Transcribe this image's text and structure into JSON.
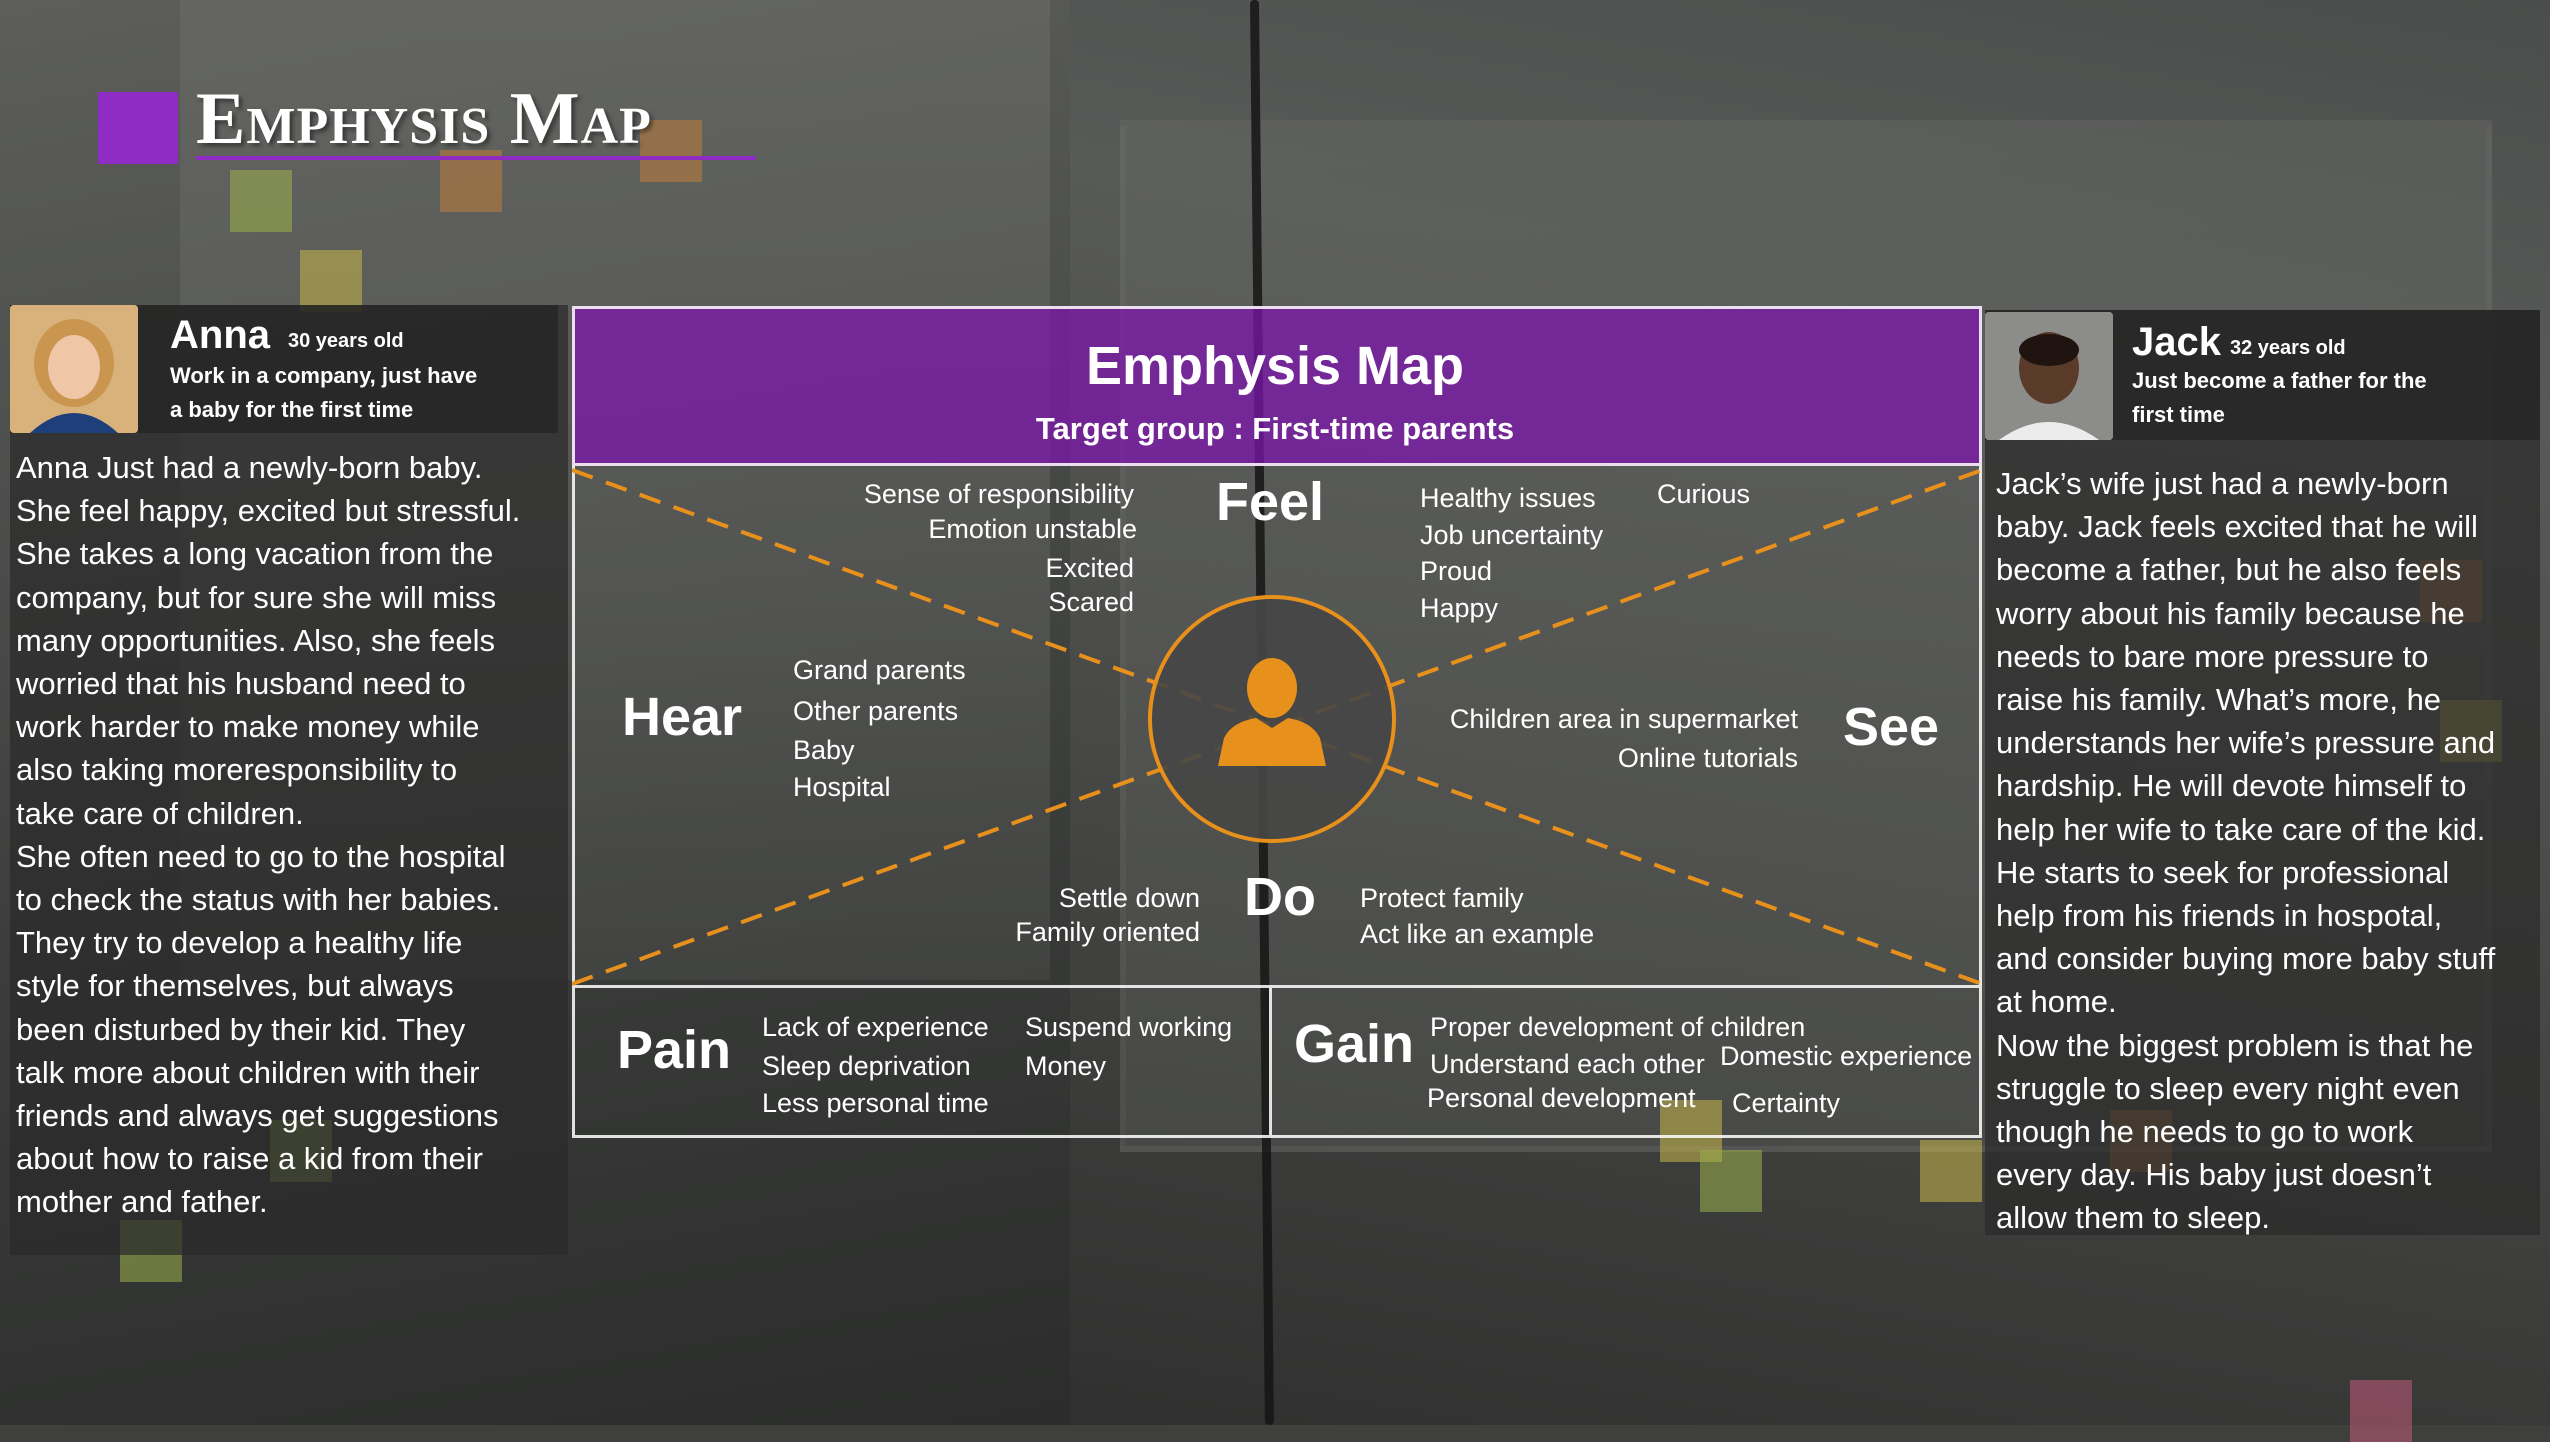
{
  "title": "Emphysis Map",
  "map": {
    "title": "Emphysis Map",
    "subtitle": "Target group : First-time parents",
    "feel": {
      "label": "Feel",
      "left": [
        "Sense of responsibility",
        "Emotion unstable",
        "Excited",
        "Scared"
      ],
      "right": [
        "Healthy issues",
        "Job uncertainty",
        "Proud",
        "Happy"
      ],
      "extra": "Curious"
    },
    "hear": {
      "label": "Hear",
      "items": [
        "Grand parents",
        "Other parents",
        "Baby",
        "Hospital"
      ]
    },
    "see": {
      "label": "See",
      "items": [
        "Children area in supermarket",
        "Online tutorials"
      ]
    },
    "do": {
      "label": "Do",
      "left": [
        "Settle down",
        "Family oriented"
      ],
      "right": [
        "Protect family",
        "Act like an example"
      ]
    },
    "pain": {
      "label": "Pain",
      "col1": [
        "Lack of experience",
        "Sleep deprivation",
        "Less personal time"
      ],
      "col2": [
        "Suspend working",
        "Money"
      ]
    },
    "gain": {
      "label": "Gain",
      "col1": [
        "Proper development of children",
        "Understand each other",
        "Personal development"
      ],
      "col2": [
        "Domestic experience",
        "Certainty"
      ]
    },
    "center_icon": "user-icon",
    "accent_color": "#e8901c"
  },
  "personas": {
    "anna": {
      "name": "Anna",
      "age": "30 years old",
      "role_lines": [
        "Work in a company, just have",
        "a baby for the first time"
      ],
      "story_lines": [
        "Anna Just had a newly-born baby.",
        "She feel happy, excited but stressful.",
        "She takes a long vacation from the",
        "company, but for sure she will miss",
        "many opportunities. Also, she feels",
        "worried that his husband need to",
        "work harder to make money while",
        "also taking moreresponsibility to",
        "take care of children.",
        "She often need to go to the hospital",
        "to check the status with her babies.",
        "They try to develop a healthy life",
        "style for themselves, but always",
        "been disturbed by their kid. They",
        "talk more about children with their",
        "friends and always get suggestions",
        "about how to raise a kid from their",
        "mother and father."
      ]
    },
    "jack": {
      "name": "Jack",
      "age": "32 years old",
      "role_lines": [
        "Just become a father for the",
        "first time"
      ],
      "story_lines": [
        "Jack’s wife just had a newly-born",
        "baby. Jack feels excited that he will",
        "become a father, but he also feels",
        "worry about his family because he",
        "needs to bare more pressure to",
        "raise his family. What’s more, he",
        "understands her wife’s pressure and",
        "hardship. He will devote himself to",
        "help her wife to take care of the kid.",
        "He starts to seek for professional",
        "help from his friends in hospotal,",
        "and consider buying more baby stuff",
        "at home.",
        "Now the biggest problem is that he",
        "struggle to sleep every night even",
        "though he needs to go to work",
        "every day. His baby just doesn’t",
        "allow them to sleep."
      ]
    }
  },
  "colors": {
    "title_accent": "#8f2cc4",
    "header_fill": "#7e14af",
    "diagonal": "#e8901c"
  }
}
